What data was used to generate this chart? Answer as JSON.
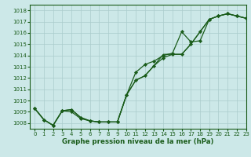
{
  "title": "Graphe pression niveau de la mer (hPa)",
  "bg_color": "#cce8e8",
  "grid_color": "#aacccc",
  "line_color": "#1a5c1a",
  "marker_color": "#1a5c1a",
  "xlim": [
    -0.5,
    23
  ],
  "ylim": [
    1007.5,
    1018.5
  ],
  "yticks": [
    1008,
    1009,
    1010,
    1011,
    1012,
    1013,
    1014,
    1015,
    1016,
    1017,
    1018
  ],
  "xticks": [
    0,
    1,
    2,
    3,
    4,
    5,
    6,
    7,
    8,
    9,
    10,
    11,
    12,
    13,
    14,
    15,
    16,
    17,
    18,
    19,
    20,
    21,
    22,
    23
  ],
  "series1_x": [
    0,
    1,
    2,
    3,
    4,
    5,
    6,
    7,
    8,
    9,
    10,
    11,
    12,
    13,
    14,
    15,
    16,
    17,
    18,
    19,
    20,
    21,
    22,
    23
  ],
  "series1_y": [
    1009.3,
    1008.3,
    1007.8,
    1009.1,
    1009.2,
    1008.5,
    1008.2,
    1008.1,
    1008.1,
    1008.1,
    1010.5,
    1011.8,
    1012.2,
    1013.1,
    1013.8,
    1014.1,
    1014.1,
    1015.0,
    1016.1,
    1017.2,
    1017.5,
    1017.7,
    1017.5,
    1017.3
  ],
  "series2_x": [
    0,
    1,
    2,
    3,
    4,
    5,
    6,
    7,
    8,
    9,
    10,
    11,
    12,
    13,
    14,
    15,
    16,
    17,
    18,
    19,
    20,
    21,
    22,
    23
  ],
  "series2_y": [
    1009.3,
    1008.3,
    1007.8,
    1009.1,
    1009.0,
    1008.4,
    1008.2,
    1008.1,
    1008.1,
    1008.1,
    1010.5,
    1012.5,
    1013.2,
    1013.5,
    1014.0,
    1014.2,
    1016.1,
    1015.2,
    1015.3,
    1017.2,
    1017.5,
    1017.7,
    1017.5,
    1017.3
  ],
  "series3_x": [
    0,
    1,
    2,
    3,
    4,
    5,
    6,
    7,
    8,
    9,
    10,
    11,
    12,
    13,
    14,
    15,
    16,
    17,
    18,
    19,
    20,
    21,
    22,
    23
  ],
  "series3_y": [
    1009.3,
    1008.3,
    1007.8,
    1009.1,
    1009.2,
    1008.5,
    1008.2,
    1008.1,
    1008.1,
    1008.1,
    1010.5,
    1011.8,
    1012.2,
    1013.1,
    1014.1,
    1014.1,
    1014.1,
    1015.0,
    1016.1,
    1017.2,
    1017.5,
    1017.7,
    1017.5,
    1017.3
  ],
  "lw": 0.9,
  "markersize": 2.2,
  "title_fontsize": 6.2,
  "tick_fontsize": 5.0
}
